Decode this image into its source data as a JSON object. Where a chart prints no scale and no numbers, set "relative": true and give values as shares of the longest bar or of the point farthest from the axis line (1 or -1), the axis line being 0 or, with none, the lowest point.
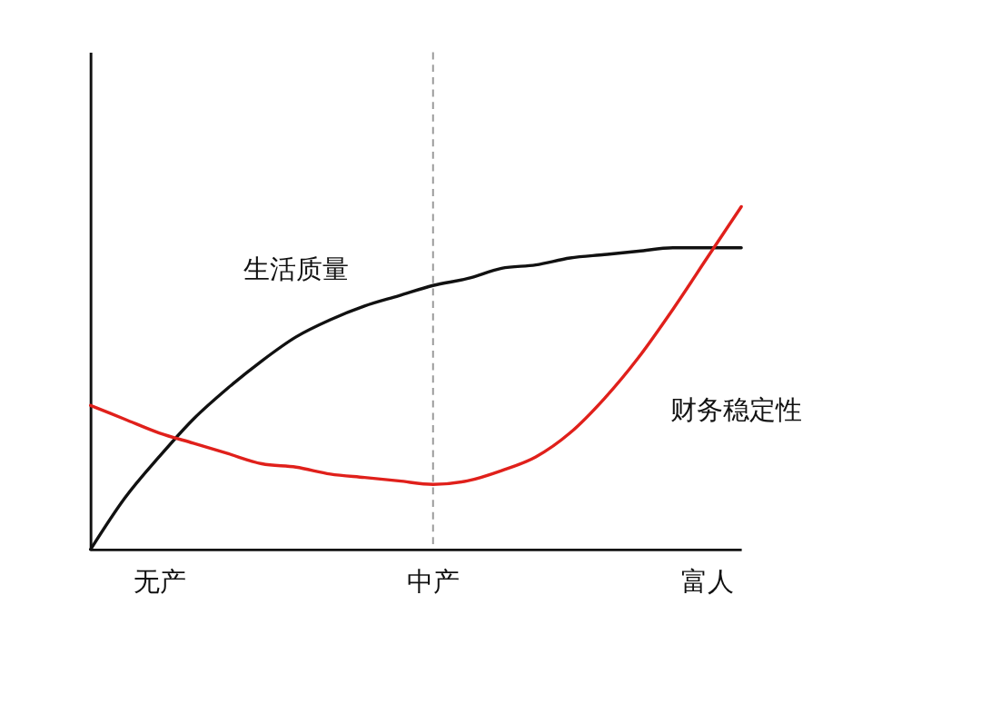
{
  "chart_data": {
    "type": "line",
    "relative": true,
    "categories": [
      null,
      null,
      "无产",
      null,
      null,
      null,
      null,
      null,
      null,
      null,
      "中产",
      null,
      null,
      null,
      null,
      null,
      null,
      null,
      "富人",
      null
    ],
    "series": [
      {
        "name": "生活质量",
        "color": "#111111",
        "values": [
          0,
          0.15,
          0.27,
          0.38,
          0.47,
          0.55,
          0.62,
          0.67,
          0.71,
          0.74,
          0.77,
          0.79,
          0.82,
          0.83,
          0.85,
          0.86,
          0.87,
          0.88,
          0.88,
          0.88
        ]
      },
      {
        "name": "财务稳定性",
        "color": "#e0201b",
        "values": [
          0.42,
          0.38,
          0.34,
          0.31,
          0.28,
          0.25,
          0.24,
          0.22,
          0.21,
          0.2,
          0.19,
          0.2,
          0.23,
          0.27,
          0.34,
          0.44,
          0.56,
          0.7,
          0.85,
          1.0
        ]
      }
    ],
    "ref_lines": [
      {
        "axis": "x",
        "value": "中产",
        "color": "#999999",
        "line_style": "dashed"
      }
    ],
    "grid": false,
    "marker": "none",
    "line_style": "solid"
  }
}
